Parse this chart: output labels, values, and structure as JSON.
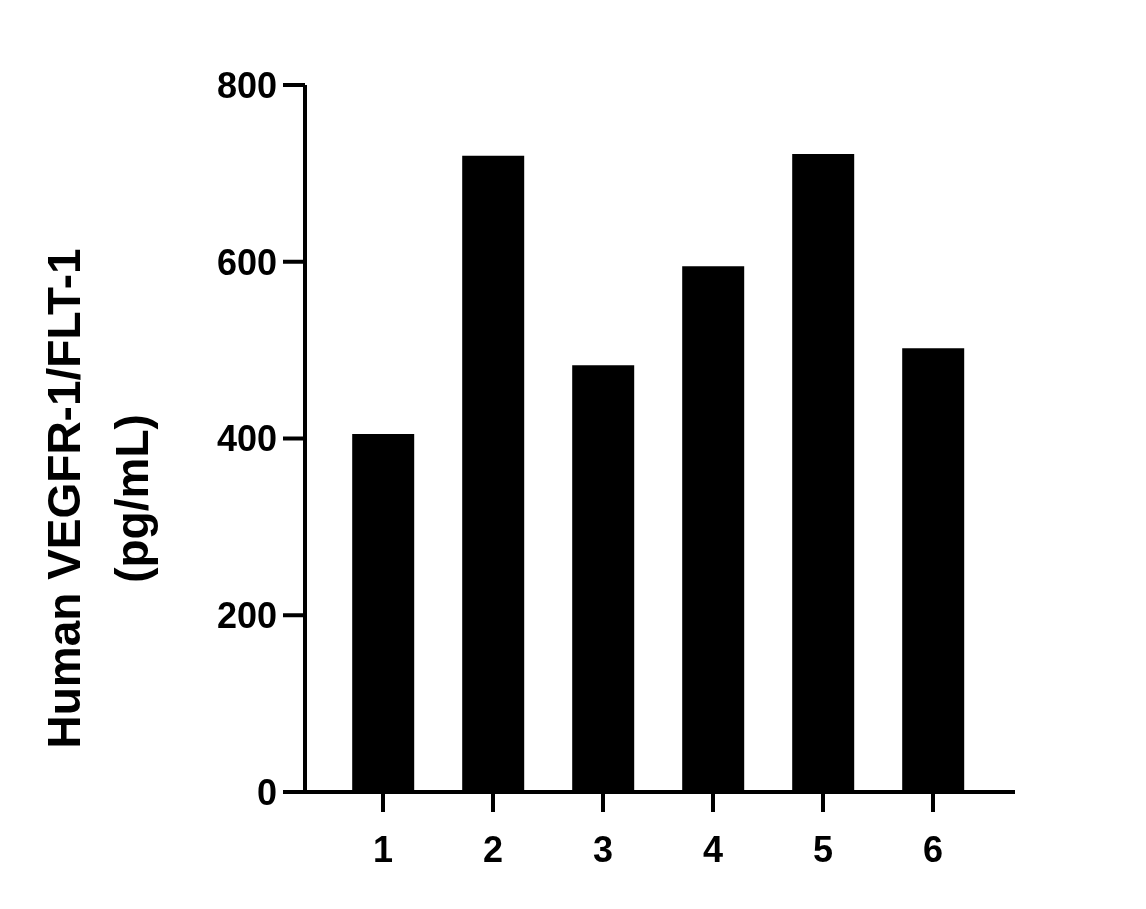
{
  "chart_data": {
    "type": "bar",
    "ylabel": "Human VEGFR-1/FLT-1 (pg/mL)",
    "categories": [
      "1",
      "2",
      "3",
      "4",
      "5",
      "6"
    ],
    "values": [
      405,
      720,
      483,
      595,
      722,
      502
    ],
    "color": "#000000",
    "ylim": [
      0,
      800
    ],
    "yticks": [
      0,
      200,
      400,
      600,
      800
    ],
    "grid": false,
    "legend": false
  }
}
